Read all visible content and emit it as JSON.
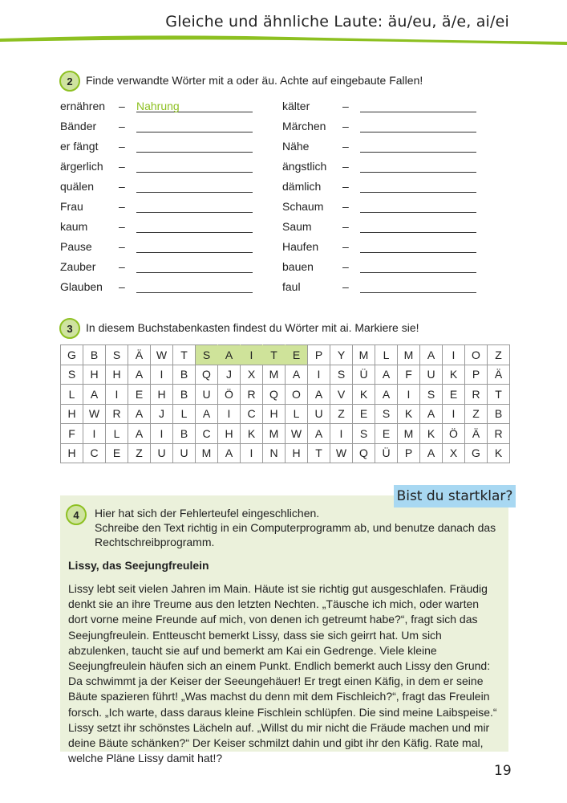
{
  "header": {
    "title": "Gleiche und ähnliche Laute: äu/eu, ä/e, ai/ei",
    "accent": "#8dc021"
  },
  "task2": {
    "number": "2",
    "instruction": "Finde verwandte Wörter mit a oder äu. Achte auf eingebaute Fallen!",
    "left": [
      {
        "word": "ernähren",
        "answer": "Nahrung"
      },
      {
        "word": "Bänder",
        "answer": ""
      },
      {
        "word": "er fängt",
        "answer": ""
      },
      {
        "word": "ärgerlich",
        "answer": ""
      },
      {
        "word": "quälen",
        "answer": ""
      },
      {
        "word": "Frau",
        "answer": ""
      },
      {
        "word": "kaum",
        "answer": ""
      },
      {
        "word": "Pause",
        "answer": ""
      },
      {
        "word": "Zauber",
        "answer": ""
      },
      {
        "word": "Glauben",
        "answer": ""
      }
    ],
    "right": [
      {
        "word": "kälter",
        "answer": ""
      },
      {
        "word": "Märchen",
        "answer": ""
      },
      {
        "word": "Nähe",
        "answer": ""
      },
      {
        "word": "ängstlich",
        "answer": ""
      },
      {
        "word": "dämlich",
        "answer": ""
      },
      {
        "word": "Schaum",
        "answer": ""
      },
      {
        "word": "Saum",
        "answer": ""
      },
      {
        "word": "Haufen",
        "answer": ""
      },
      {
        "word": "bauen",
        "answer": ""
      },
      {
        "word": "faul",
        "answer": ""
      }
    ],
    "dash": "–"
  },
  "task3": {
    "number": "3",
    "instruction": "In diesem Buchstabenkasten findest du Wörter mit ai. Markiere sie!",
    "grid": [
      "GBSÄWTSAITEPYMLMAIOZ",
      "SHHAIBQJXMAISÜAFUKPÄ",
      "LAIEHBUÖRQOAVKAISERT",
      "HWRAJLAICHLUZESKAIZB",
      "FILAIBCHKMWAISEMKÖÄR",
      "HCEZUUMAINHTWQÜPAXGK"
    ],
    "highlight": {
      "row": 0,
      "start": 6,
      "end": 10,
      "word": "SAITE",
      "color": "#cfe39a"
    }
  },
  "task4": {
    "number": "4",
    "badge": "Bist du startklar?",
    "instruction": [
      "Hier hat sich der Fehlerteufel eingeschlichen.",
      "Schreibe den Text richtig in ein Computerprogramm ab, und benutze danach das Rechtschreibprogramm."
    ],
    "story_title": "Lissy, das Seejungfreulein",
    "story": "Lissy lebt seit vielen Jahren im Main. Häute ist sie richtig gut ausgeschlafen. Fräu­dig denkt sie an ihre Treume aus den letzten Nechten. „Täusche ich mich, oder warten dort vorne meine Freunde auf mich, von denen ich getreumt habe?“, fragt sich das Seejungfreulein. Entteuscht bemerkt Lissy, dass sie sich geirrt hat. Um sich abzulenken, taucht sie auf und bemerkt am Kai ein Gedrenge. Viele kleine Seejungfreulein häufen sich an einem Punkt. Endlich bemerkt auch Lissy den Grund: Da schwimmt ja der Keiser der Seeungehäuer! Er tregt einen Käfig, in dem er seine Bäute spazieren führt! „Was machst du denn mit dem Fischleich?“, fragt das Freulein forsch. „Ich warte, dass daraus kleine Fischlein schlüpfen. Die sind meine Laibspeise.“ Lissy setzt ihr schönstes Lächeln auf. „Willst du mir nicht die Fräude machen und mir deine Bäute schänken?“ Der Keiser schmilzt dahin und gibt ihr den Käfig. Rate mal, welche Pläne Lissy damit hat!?"
  },
  "page_number": "19"
}
